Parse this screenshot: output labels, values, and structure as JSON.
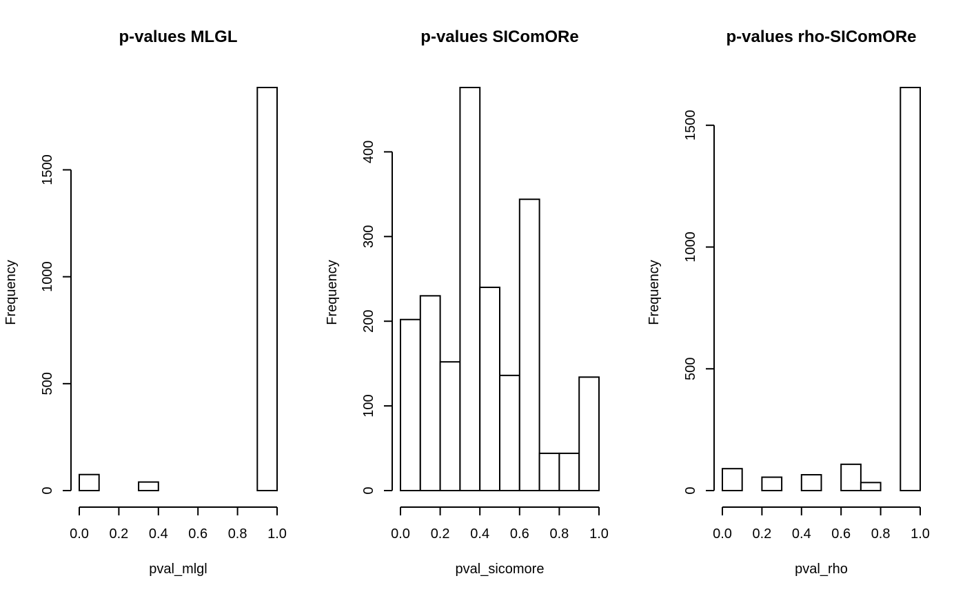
{
  "chart_data": [
    {
      "type": "bar",
      "title": "p-values MLGL",
      "xlabel": "pval_mlgl",
      "ylabel": "Frequency",
      "bin_edges": [
        0.0,
        0.1,
        0.2,
        0.3,
        0.4,
        0.5,
        0.6,
        0.7,
        0.8,
        0.9,
        1.0
      ],
      "values": [
        75,
        0,
        0,
        40,
        0,
        0,
        0,
        0,
        0,
        1885
      ],
      "xlim": [
        0.0,
        1.0
      ],
      "ylim": [
        0,
        1885
      ],
      "xticks": [
        0.0,
        0.2,
        0.4,
        0.6,
        0.8,
        1.0
      ],
      "xtick_labels": [
        "0.0",
        "0.2",
        "0.4",
        "0.6",
        "0.8",
        "1.0"
      ],
      "yticks": [
        0,
        500,
        1000,
        1500
      ],
      "ytick_labels": [
        "0",
        "500",
        "1000",
        "1500"
      ],
      "grid": false
    },
    {
      "type": "bar",
      "title": "p-values SIComORe",
      "xlabel": "pval_sicomore",
      "ylabel": "Frequency",
      "bin_edges": [
        0.0,
        0.1,
        0.2,
        0.3,
        0.4,
        0.5,
        0.6,
        0.7,
        0.8,
        0.9,
        1.0
      ],
      "values": [
        202,
        230,
        152,
        476,
        240,
        136,
        344,
        44,
        44,
        134
      ],
      "xlim": [
        0.0,
        1.0
      ],
      "ylim": [
        0,
        476
      ],
      "xticks": [
        0.0,
        0.2,
        0.4,
        0.6,
        0.8,
        1.0
      ],
      "xtick_labels": [
        "0.0",
        "0.2",
        "0.4",
        "0.6",
        "0.8",
        "1.0"
      ],
      "yticks": [
        0,
        100,
        200,
        300,
        400
      ],
      "ytick_labels": [
        "0",
        "100",
        "200",
        "300",
        "400"
      ],
      "grid": false
    },
    {
      "type": "bar",
      "title": "p-values rho-SIComORe",
      "xlabel": "pval_rho",
      "ylabel": "Frequency",
      "bin_edges": [
        0.0,
        0.1,
        0.2,
        0.3,
        0.4,
        0.5,
        0.6,
        0.7,
        0.8,
        0.9,
        1.0
      ],
      "values": [
        90,
        0,
        55,
        0,
        65,
        0,
        108,
        33,
        0,
        1655
      ],
      "xlim": [
        0.0,
        1.0
      ],
      "ylim": [
        0,
        1655
      ],
      "xticks": [
        0.0,
        0.2,
        0.4,
        0.6,
        0.8,
        1.0
      ],
      "xtick_labels": [
        "0.0",
        "0.2",
        "0.4",
        "0.6",
        "0.8",
        "1.0"
      ],
      "yticks": [
        0,
        500,
        1000,
        1500
      ],
      "ytick_labels": [
        "0",
        "500",
        "1000",
        "1500"
      ],
      "grid": false
    }
  ]
}
